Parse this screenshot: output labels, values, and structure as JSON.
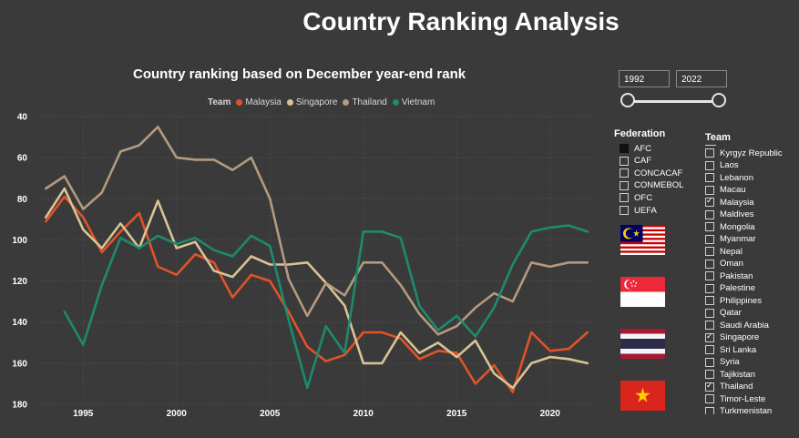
{
  "page_title": "Country Ranking Analysis",
  "colors": {
    "background": "#3a3a3a",
    "Malaysia": "#e0532a",
    "Singapore": "#d9c393",
    "Thailand": "#b49a7e",
    "Vietnam": "#1e8a6e"
  },
  "year_filter": {
    "start": "1992",
    "end": "2022"
  },
  "federation_slicer": {
    "title": "Federation",
    "items": [
      {
        "label": "AFC",
        "state": "filled"
      },
      {
        "label": "CAF",
        "state": "empty"
      },
      {
        "label": "CONCACAF",
        "state": "empty"
      },
      {
        "label": "CONMEBOL",
        "state": "empty"
      },
      {
        "label": "OFC",
        "state": "empty"
      },
      {
        "label": "UEFA",
        "state": "empty"
      }
    ]
  },
  "team_slicer": {
    "title": "Team",
    "items": [
      {
        "label": "Kyrgyz Republic",
        "checked": false
      },
      {
        "label": "Laos",
        "checked": false
      },
      {
        "label": "Lebanon",
        "checked": false
      },
      {
        "label": "Macau",
        "checked": false
      },
      {
        "label": "Malaysia",
        "checked": true
      },
      {
        "label": "Maldives",
        "checked": false
      },
      {
        "label": "Mongolia",
        "checked": false
      },
      {
        "label": "Myanmar",
        "checked": false
      },
      {
        "label": "Nepal",
        "checked": false
      },
      {
        "label": "Oman",
        "checked": false
      },
      {
        "label": "Pakistan",
        "checked": false
      },
      {
        "label": "Palestine",
        "checked": false
      },
      {
        "label": "Philippines",
        "checked": false
      },
      {
        "label": "Qatar",
        "checked": false
      },
      {
        "label": "Saudi Arabia",
        "checked": false
      },
      {
        "label": "Singapore",
        "checked": true
      },
      {
        "label": "Sri Lanka",
        "checked": false
      },
      {
        "label": "Syria",
        "checked": false
      },
      {
        "label": "Tajikistan",
        "checked": false
      },
      {
        "label": "Thailand",
        "checked": true
      },
      {
        "label": "Timor-Leste",
        "checked": false
      },
      {
        "label": "Turkmenistan",
        "checked": false
      }
    ]
  },
  "flags": [
    "malaysia-flag",
    "singapore-flag",
    "thailand-flag",
    "vietnam-flag"
  ],
  "chart_data": {
    "type": "line",
    "title": "Country ranking based on December year-end rank",
    "legend_title": "Team",
    "legend_position": "top",
    "xlabel": "",
    "ylabel": "",
    "x_ticks": [
      1995,
      2000,
      2005,
      2010,
      2015,
      2020
    ],
    "y_ticks": [
      40,
      60,
      80,
      100,
      120,
      140,
      160,
      180
    ],
    "xlim": [
      1992.5,
      2022.5
    ],
    "ylim": [
      40,
      180
    ],
    "y_reversed": true,
    "grid": true,
    "x": [
      1993,
      1994,
      1995,
      1996,
      1997,
      1998,
      1999,
      2000,
      2001,
      2002,
      2003,
      2004,
      2005,
      2006,
      2007,
      2008,
      2009,
      2010,
      2011,
      2012,
      2013,
      2014,
      2015,
      2016,
      2017,
      2018,
      2019,
      2020,
      2021,
      2022
    ],
    "series": [
      {
        "name": "Malaysia",
        "values": [
          91,
          79,
          89,
          106,
          96,
          87,
          113,
          117,
          107,
          111,
          128,
          117,
          120,
          135,
          152,
          159,
          156,
          145,
          145,
          148,
          158,
          154,
          155,
          170,
          161,
          174,
          145,
          154,
          153,
          145
        ]
      },
      {
        "name": "Singapore",
        "values": [
          89,
          75,
          95,
          104,
          92,
          104,
          81,
          104,
          101,
          115,
          118,
          108,
          112,
          112,
          111,
          121,
          132,
          160,
          160,
          145,
          155,
          150,
          157,
          149,
          165,
          172,
          160,
          157,
          158,
          160
        ]
      },
      {
        "name": "Thailand",
        "values": [
          75,
          69,
          85,
          77,
          57,
          54,
          45,
          60,
          61,
          61,
          66,
          60,
          80,
          119,
          137,
          121,
          127,
          111,
          111,
          122,
          136,
          146,
          142,
          133,
          126,
          130,
          111,
          113,
          111,
          111
        ]
      },
      {
        "name": "Vietnam",
        "values": [
          null,
          135,
          151,
          122,
          99,
          104,
          98,
          102,
          99,
          105,
          108,
          98,
          103,
          139,
          172,
          142,
          155,
          96,
          96,
          99,
          132,
          144,
          137,
          147,
          133,
          112,
          96,
          94,
          93,
          96
        ]
      }
    ]
  }
}
